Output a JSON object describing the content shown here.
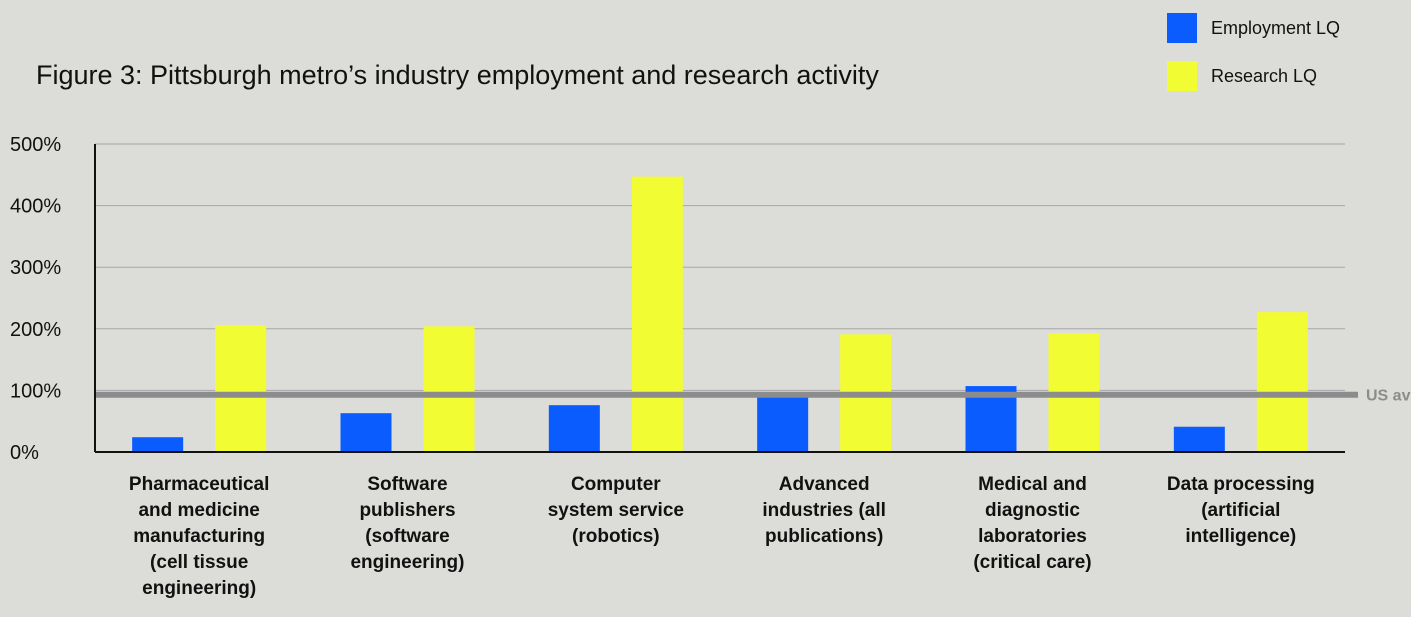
{
  "colors": {
    "background": "#dcdcd8",
    "employment": "#0a5cff",
    "research": "#f2fc32",
    "reference_line": "#8c8c8c",
    "grid": "#a6a6a6",
    "text": "#111111",
    "reference_label": "#8c8c8c"
  },
  "chart_data": {
    "type": "bar",
    "title": "Figure 3: Pittsburgh metro’s industry employment and research activity",
    "xlabel": "",
    "ylabel": "",
    "ylim": [
      0,
      500
    ],
    "yticks": [
      0,
      100,
      200,
      300,
      400,
      500
    ],
    "ytick_labels": [
      "0%",
      "100%",
      "200%",
      "300%",
      "400%",
      "500%"
    ],
    "grid": true,
    "legend_position": "top-right",
    "categories": [
      [
        "Pharmaceutical",
        "and medicine",
        "manufacturing",
        "(cell tissue",
        "engineering)"
      ],
      [
        "Software",
        "publishers",
        "(software",
        "engineering)"
      ],
      [
        "Computer",
        "system service",
        "(robotics)"
      ],
      [
        "Advanced",
        "industries (all",
        "publications)"
      ],
      [
        "Medical and",
        "diagnostic",
        "laboratories",
        "(critical care)"
      ],
      [
        "Data processing",
        "(artificial",
        "intelligence)"
      ]
    ],
    "series": [
      {
        "name": "Employment LQ",
        "values": [
          24,
          63,
          76,
          91,
          107,
          41
        ]
      },
      {
        "name": "Research LQ",
        "values": [
          206,
          204,
          447,
          191,
          193,
          227
        ]
      }
    ],
    "reference_line": {
      "value": 93,
      "label": "US avg."
    }
  }
}
